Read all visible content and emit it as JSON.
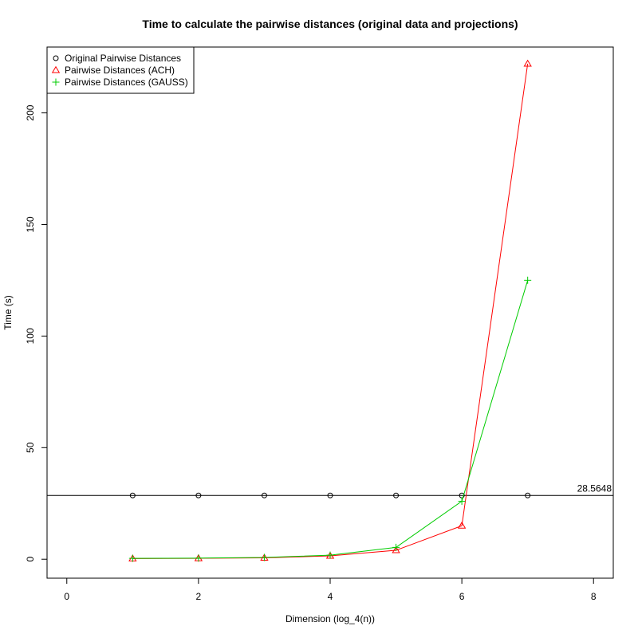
{
  "chart_data": {
    "type": "line",
    "title": "Time to calculate the pairwise distances (original data and projections)",
    "xlabel": "Dimension (log_4(n))",
    "ylabel": "Time (s)",
    "xlim": [
      -0.3,
      8.3
    ],
    "ylim": [
      -8.5,
      229.5
    ],
    "x_ticks": [
      0,
      2,
      4,
      6,
      8
    ],
    "y_ticks": [
      0,
      50,
      100,
      150,
      200
    ],
    "grid": false,
    "legend_position": "top-left",
    "reference_line": {
      "y": 28.5648,
      "label": "28.5648",
      "color": "#000000"
    },
    "series": [
      {
        "name": "Original Pairwise Distances",
        "marker": "circle",
        "color": "#000000",
        "connected": false,
        "x": [
          1,
          2,
          3,
          4,
          5,
          6,
          7
        ],
        "y": [
          28.5648,
          28.5648,
          28.5648,
          28.5648,
          28.5648,
          28.5648,
          28.5648
        ]
      },
      {
        "name": "Pairwise Distances (ACH)",
        "marker": "triangle",
        "color": "#ff0000",
        "connected": true,
        "x": [
          1,
          2,
          3,
          4,
          5,
          6,
          7
        ],
        "y": [
          0.3,
          0.4,
          0.6,
          1.5,
          4.0,
          15.0,
          222.0
        ]
      },
      {
        "name": "Pairwise Distances (GAUSS)",
        "marker": "plus",
        "color": "#00cc00",
        "connected": true,
        "x": [
          1,
          2,
          3,
          4,
          5,
          6,
          7
        ],
        "y": [
          0.4,
          0.5,
          0.8,
          1.8,
          5.3,
          26.0,
          125.0
        ]
      }
    ]
  }
}
